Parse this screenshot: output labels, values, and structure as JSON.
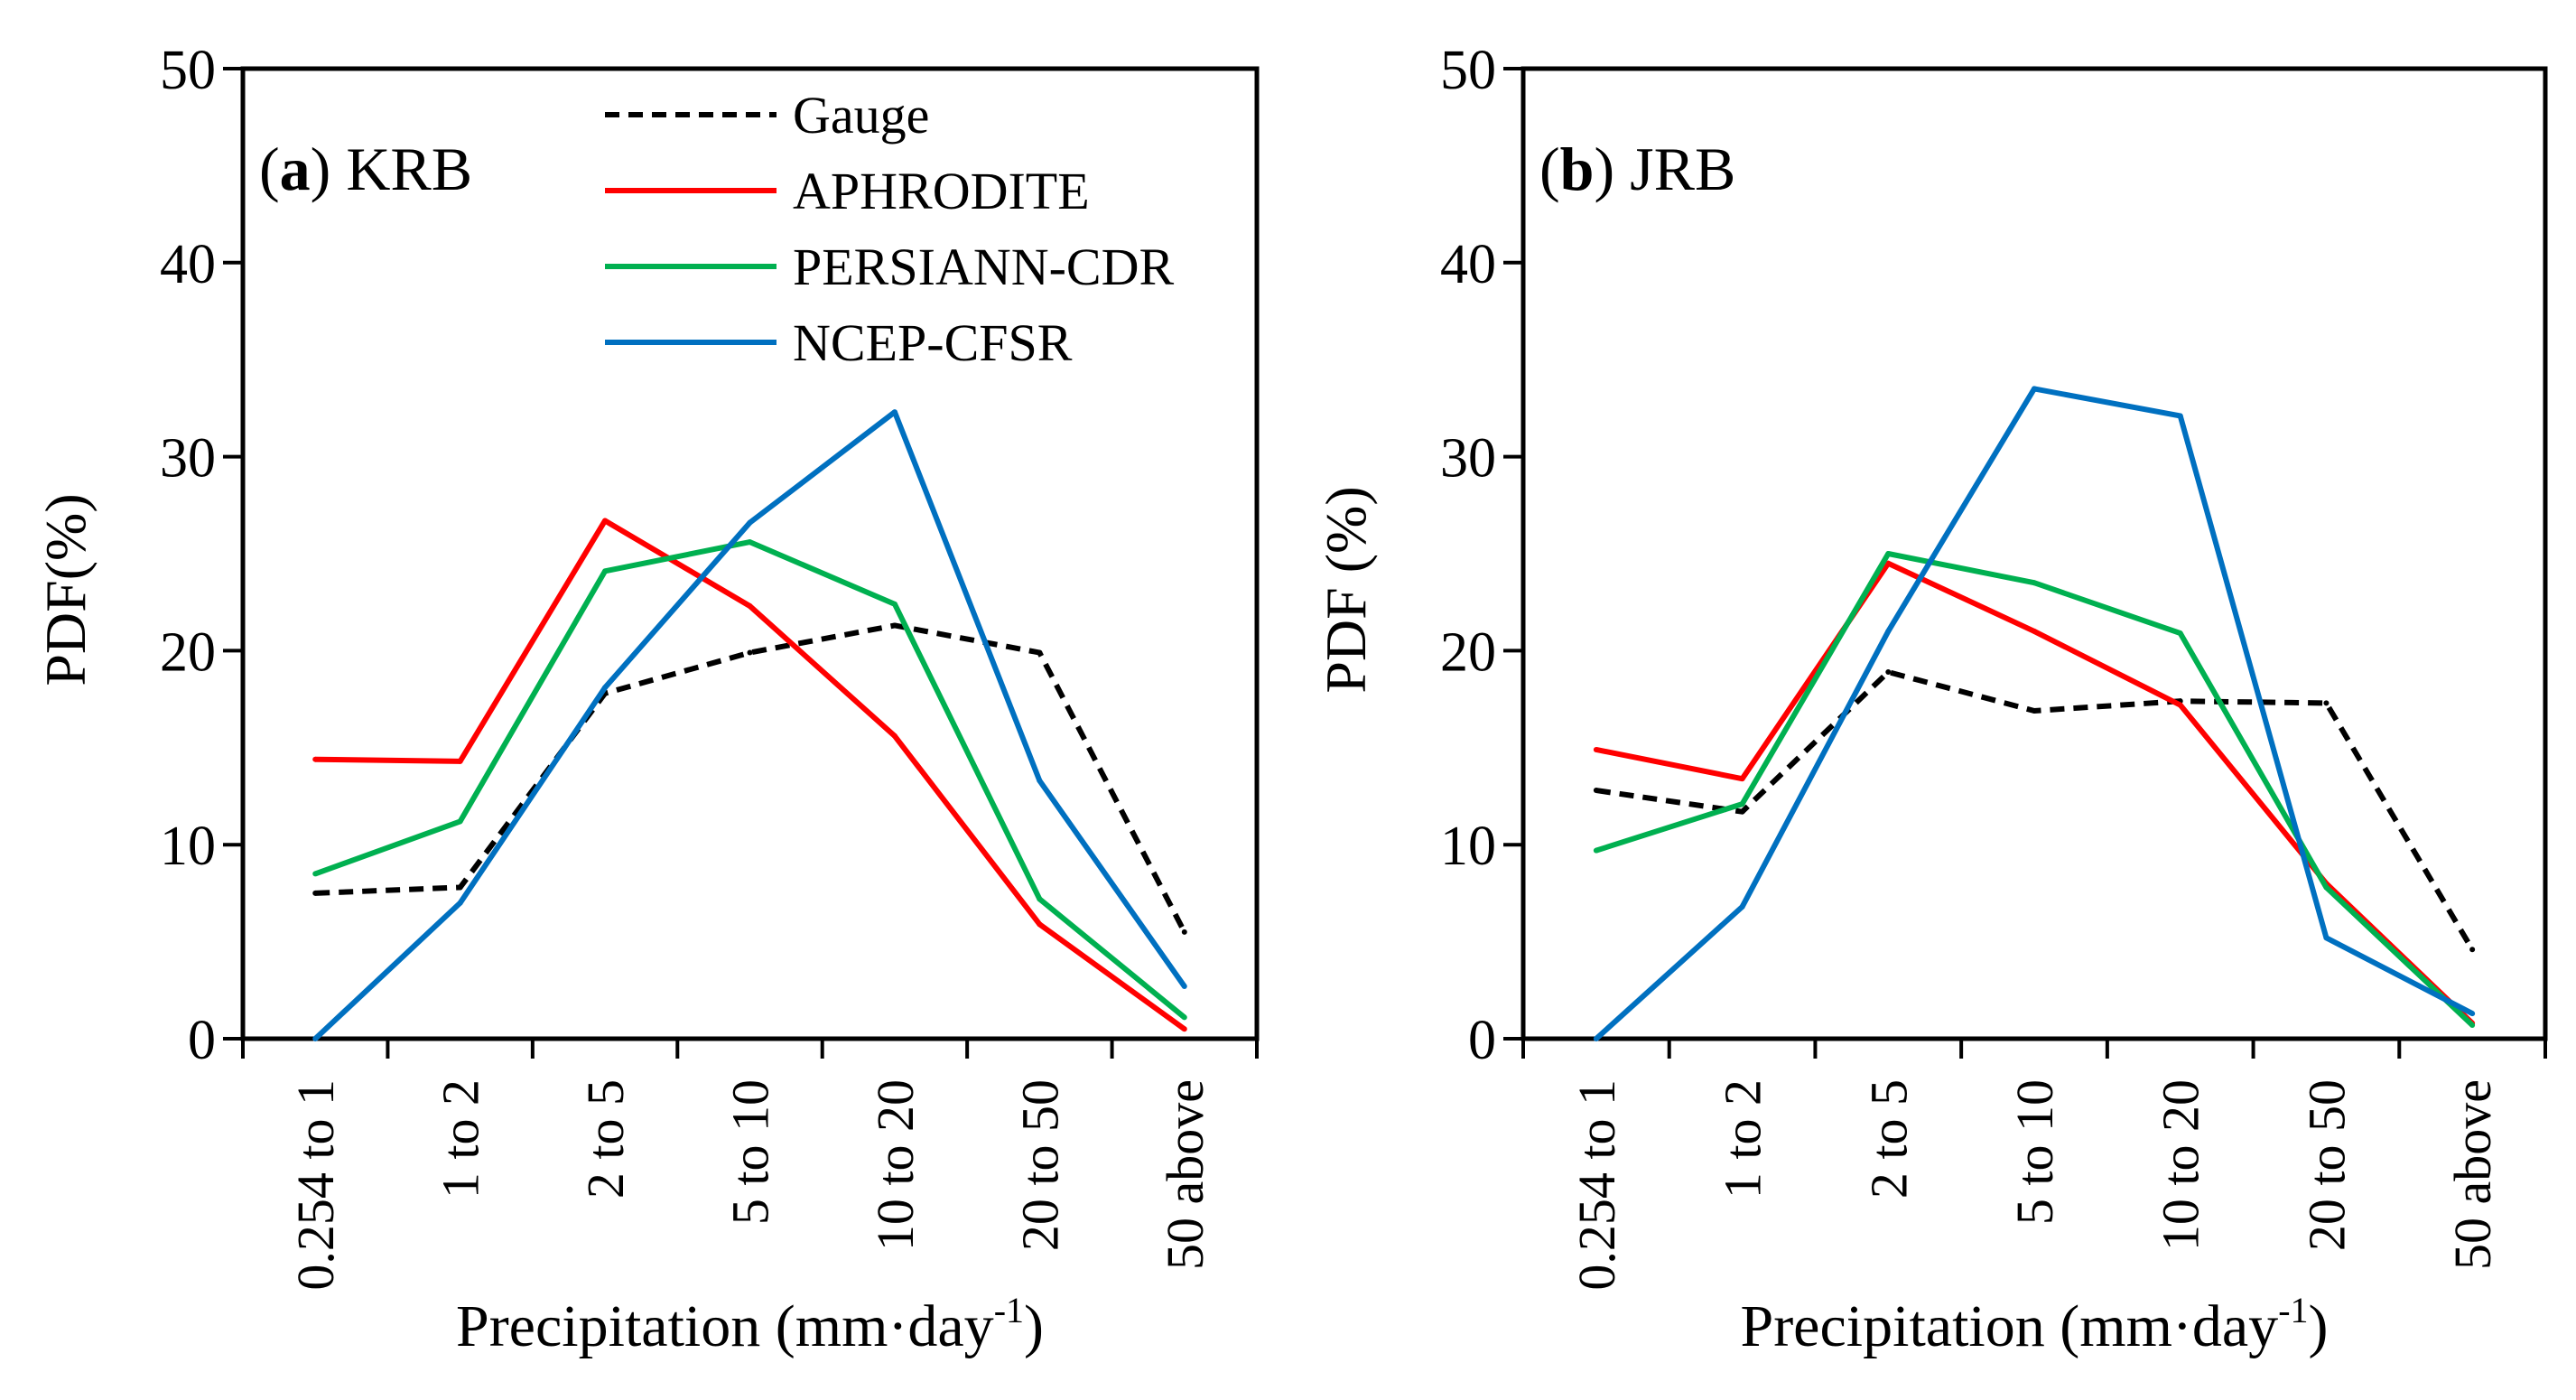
{
  "chart_data": [
    {
      "type": "line",
      "panel_label": "a",
      "title": "KRB",
      "xlabel": "Precipitation (mm·day",
      "xlabel_sup": "-1",
      "xlabel_close": ")",
      "ylabel": "PDF(%)",
      "ylim": [
        0,
        50
      ],
      "yticks": [
        "0",
        "10",
        "20",
        "30",
        "40",
        "50"
      ],
      "categories": [
        "0.254 to 1",
        "1 to 2",
        "2 to 5",
        "5 to 10",
        "10 to 20",
        "20 to 50",
        "50 above"
      ],
      "legend_position": "top-right",
      "series": [
        {
          "name": "Gauge",
          "color": "#000000",
          "dashed": true,
          "values": [
            7.5,
            7.8,
            17.8,
            19.9,
            21.3,
            19.9,
            5.5
          ]
        },
        {
          "name": "APHRODITE",
          "color": "#ff0000",
          "dashed": false,
          "values": [
            14.4,
            14.3,
            26.7,
            22.3,
            15.6,
            5.9,
            0.5
          ]
        },
        {
          "name": "PERSIANN-CDR",
          "color": "#00b050",
          "dashed": false,
          "values": [
            8.5,
            11.2,
            24.1,
            25.6,
            22.4,
            7.2,
            1.1
          ]
        },
        {
          "name": "NCEP-CFSR",
          "color": "#0070c0",
          "dashed": false,
          "values": [
            0.0,
            7.0,
            18.1,
            26.6,
            32.3,
            13.3,
            2.7
          ]
        }
      ]
    },
    {
      "type": "line",
      "panel_label": "b",
      "title": "JRB",
      "xlabel": "Precipitation (mm·day",
      "xlabel_sup": "-1",
      "xlabel_close": ")",
      "ylabel": "PDF (%)",
      "ylim": [
        0,
        50
      ],
      "yticks": [
        "0",
        "10",
        "20",
        "30",
        "40",
        "50"
      ],
      "categories": [
        "0.254 to 1",
        "1 to 2",
        "2 to 5",
        "5 to 10",
        "10 to 20",
        "20 to 50",
        "50 above"
      ],
      "series": [
        {
          "name": "Gauge",
          "color": "#000000",
          "dashed": true,
          "values": [
            12.8,
            11.7,
            18.9,
            16.9,
            17.4,
            17.3,
            4.6
          ]
        },
        {
          "name": "APHRODITE",
          "color": "#ff0000",
          "dashed": false,
          "values": [
            14.9,
            13.4,
            24.5,
            21.0,
            17.2,
            8.0,
            0.8
          ]
        },
        {
          "name": "PERSIANN-CDR",
          "color": "#00b050",
          "dashed": false,
          "values": [
            9.7,
            12.1,
            25.0,
            23.5,
            20.9,
            7.8,
            0.7
          ]
        },
        {
          "name": "NCEP-CFSR",
          "color": "#0070c0",
          "dashed": false,
          "values": [
            0.0,
            6.8,
            21.0,
            33.5,
            32.1,
            5.2,
            1.3
          ]
        }
      ]
    }
  ]
}
